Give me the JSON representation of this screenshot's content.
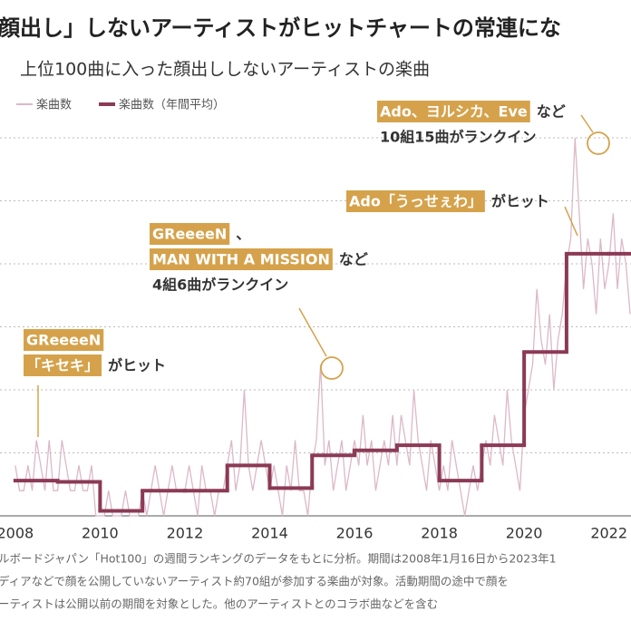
{
  "chart_data": {
    "type": "line",
    "title": "顔出し」しないアーティストがヒットチャートの常連にな",
    "subtitle": "上位100曲に入った顔出ししないアーティストの楽曲",
    "xlim": [
      2007.64,
      2022.52
    ],
    "xticks": [
      2008,
      2010,
      2012,
      2014,
      2016,
      2018,
      2020,
      2022
    ],
    "ylim": [
      0,
      15
    ],
    "yticks": [
      2.5,
      5,
      7.5,
      10,
      12.5,
      15
    ],
    "grid": true,
    "series": [
      {
        "name": "楽曲数",
        "color": "#dcb8c8",
        "style": "line",
        "x": [
          2008,
          2008.1,
          2008.2,
          2008.3,
          2008.4,
          2008.5,
          2008.6,
          2008.7,
          2008.8,
          2008.9,
          2009,
          2009.1,
          2009.2,
          2009.3,
          2009.4,
          2009.5,
          2009.6,
          2009.7,
          2009.8,
          2009.9,
          2010,
          2010.1,
          2010.2,
          2010.3,
          2010.4,
          2010.5,
          2010.6,
          2010.7,
          2010.8,
          2010.9,
          2011,
          2011.1,
          2011.2,
          2011.3,
          2011.4,
          2011.5,
          2011.6,
          2011.7,
          2011.8,
          2011.9,
          2012,
          2012.1,
          2012.2,
          2012.3,
          2012.4,
          2012.5,
          2012.6,
          2012.7,
          2012.8,
          2012.9,
          2013,
          2013.1,
          2013.2,
          2013.3,
          2013.4,
          2013.5,
          2013.6,
          2013.7,
          2013.8,
          2013.9,
          2014,
          2014.1,
          2014.2,
          2014.3,
          2014.4,
          2014.5,
          2014.6,
          2014.7,
          2014.8,
          2014.9,
          2015,
          2015.1,
          2015.2,
          2015.3,
          2015.4,
          2015.5,
          2015.6,
          2015.7,
          2015.8,
          2015.9,
          2016,
          2016.1,
          2016.2,
          2016.3,
          2016.4,
          2016.5,
          2016.6,
          2016.7,
          2016.8,
          2016.9,
          2017,
          2017.1,
          2017.2,
          2017.3,
          2017.4,
          2017.5,
          2017.6,
          2017.7,
          2017.8,
          2017.9,
          2018,
          2018.1,
          2018.2,
          2018.3,
          2018.4,
          2018.5,
          2018.6,
          2018.7,
          2018.8,
          2018.9,
          2019,
          2019.1,
          2019.2,
          2019.3,
          2019.4,
          2019.5,
          2019.6,
          2019.7,
          2019.8,
          2019.9,
          2020,
          2020.1,
          2020.2,
          2020.3,
          2020.4,
          2020.5,
          2020.6,
          2020.7,
          2020.8,
          2020.9,
          2021,
          2021.1,
          2021.2,
          2021.3,
          2021.4,
          2021.5,
          2021.6,
          2021.7,
          2021.8,
          2021.9,
          2022,
          2022.1,
          2022.2,
          2022.3,
          2022.4,
          2022.5
        ],
        "values": [
          2,
          1,
          1,
          2,
          1,
          3,
          2,
          1,
          3,
          1,
          1,
          3,
          2,
          1,
          1,
          2,
          1,
          1,
          2,
          0,
          0,
          0,
          1,
          0,
          0,
          0,
          1,
          0,
          0,
          0,
          1,
          0,
          1,
          2,
          1,
          0,
          1,
          2,
          1,
          1,
          1,
          2,
          1,
          0,
          2,
          1,
          1,
          0,
          1,
          1,
          2,
          3,
          1,
          2,
          5,
          2,
          1,
          2,
          3,
          2,
          1,
          2,
          1,
          0,
          2,
          1,
          3,
          1,
          1,
          0,
          2,
          3,
          6,
          2,
          3,
          1,
          2,
          3,
          1,
          2,
          3,
          2,
          4,
          2,
          3,
          1,
          2,
          3,
          2,
          4,
          2,
          4,
          3,
          2,
          5,
          3,
          2,
          1,
          3,
          2,
          1,
          2,
          1,
          3,
          2,
          1,
          0,
          1,
          2,
          1,
          2,
          3,
          2,
          4,
          3,
          2,
          5,
          3,
          2,
          1,
          4,
          5,
          6,
          9,
          7,
          6,
          8,
          5,
          7,
          8,
          10,
          11,
          15,
          12,
          9,
          11,
          10,
          8,
          11,
          9,
          10,
          12,
          9,
          11,
          10,
          8
        ]
      },
      {
        "name": "楽曲数（年間平均）",
        "color": "#8b3a55",
        "style": "step",
        "x": [
          2008,
          2009,
          2010,
          2011,
          2012,
          2013,
          2014,
          2015,
          2016,
          2017,
          2018,
          2019,
          2020,
          2021,
          2022
        ],
        "values": [
          1.4,
          1.35,
          0.2,
          1,
          1,
          2,
          1.1,
          2.4,
          2.6,
          2.8,
          1.4,
          2.8,
          6.5,
          10.4,
          10.4
        ]
      }
    ],
    "annotations": [
      {
        "lines": [
          [
            {
              "text": "GReeeeN",
              "highlight": true
            }
          ],
          [
            {
              "text": "「キセキ」",
              "highlight": true
            },
            {
              "text": "がヒット",
              "highlight": false
            }
          ]
        ]
      },
      {
        "lines": [
          [
            {
              "text": "GReeeeN",
              "highlight": true
            },
            {
              "text": "、",
              "highlight": false
            }
          ],
          [
            {
              "text": "MAN WITH A MISSION",
              "highlight": true
            },
            {
              "text": "など",
              "highlight": false
            }
          ],
          [
            {
              "text": "4組6曲がランクイン",
              "highlight": false
            }
          ]
        ]
      },
      {
        "lines": [
          [
            {
              "text": "Ado「うっせぇわ」",
              "highlight": true
            },
            {
              "text": "がヒット",
              "highlight": false
            }
          ]
        ]
      },
      {
        "lines": [
          [
            {
              "text": "Ado、ヨルシカ、Eve",
              "highlight": true
            },
            {
              "text": "など",
              "highlight": false
            }
          ],
          [
            {
              "text": "10組15曲がランクイン",
              "highlight": false
            }
          ]
        ]
      }
    ],
    "notes": [
      "ルボードジャパン「Hot100」の週間ランキングのデータをもとに分析。期間は2008年1月16日から2023年1",
      "ディアなどで顔を公開していないアーティスト約70組が参加する楽曲が対象。活動期間の途中で顔を",
      "ーティストは公開以前の期間を対象とした。他のアーティストとのコラボ曲などを含む"
    ]
  }
}
